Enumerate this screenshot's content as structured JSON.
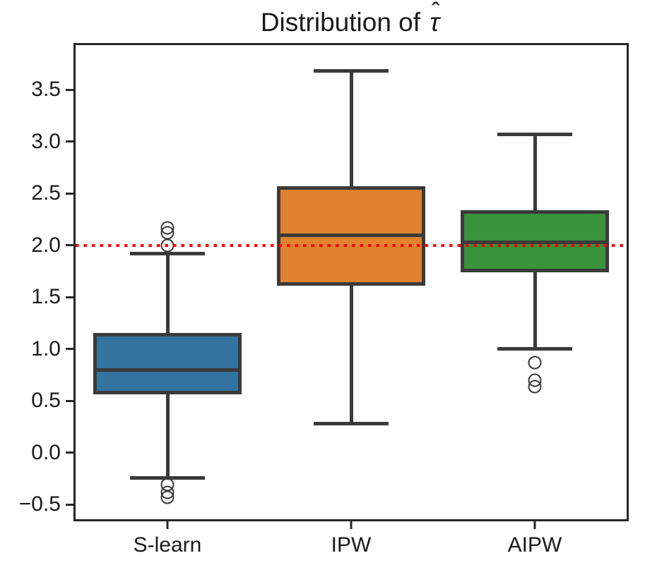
{
  "title": {
    "prefix": "Distribution of ",
    "tau": "τ",
    "hat": "ˆ",
    "full": "Distribution of τ̂"
  },
  "chart_data": {
    "type": "boxplot",
    "title": "Distribution of τ̂",
    "xlabel": "",
    "ylabel": "",
    "grid": false,
    "legend": false,
    "categories": [
      "S-learn",
      "IPW",
      "AIPW"
    ],
    "ylim": [
      -0.64,
      3.93
    ],
    "yticks": [
      {
        "value": -0.5,
        "label": "−0.5"
      },
      {
        "value": 0.0,
        "label": "0.0"
      },
      {
        "value": 0.5,
        "label": "0.5"
      },
      {
        "value": 1.0,
        "label": "1.0"
      },
      {
        "value": 1.5,
        "label": "1.5"
      },
      {
        "value": 2.0,
        "label": "2.0"
      },
      {
        "value": 2.5,
        "label": "2.5"
      },
      {
        "value": 3.0,
        "label": "3.0"
      },
      {
        "value": 3.5,
        "label": "3.5"
      }
    ],
    "reference_line": {
      "value": 2.0,
      "color": "#ff0000",
      "style": "dotted"
    },
    "series": [
      {
        "name": "S-learn",
        "fill_color": "#32749f",
        "whisker_low": -0.24,
        "q1": 0.58,
        "median": 0.8,
        "q3": 1.14,
        "whisker_high": 1.92,
        "outliers": [
          2.17,
          2.12,
          2.0,
          -0.31,
          -0.38,
          -0.43
        ]
      },
      {
        "name": "IPW",
        "fill_color": "#e0822f",
        "whisker_low": 0.28,
        "q1": 1.63,
        "median": 2.1,
        "q3": 2.55,
        "whisker_high": 3.68,
        "outliers": []
      },
      {
        "name": "AIPW",
        "fill_color": "#3a923c",
        "whisker_low": 1.0,
        "q1": 1.76,
        "median": 2.03,
        "q3": 2.32,
        "whisker_high": 3.07,
        "outliers": [
          0.87,
          0.7,
          0.64
        ]
      }
    ],
    "style": {
      "box_line_color": "#3a3a3a",
      "spine_color": "#262626",
      "text_color": "#1a1a1a",
      "background": "#ffffff"
    }
  }
}
